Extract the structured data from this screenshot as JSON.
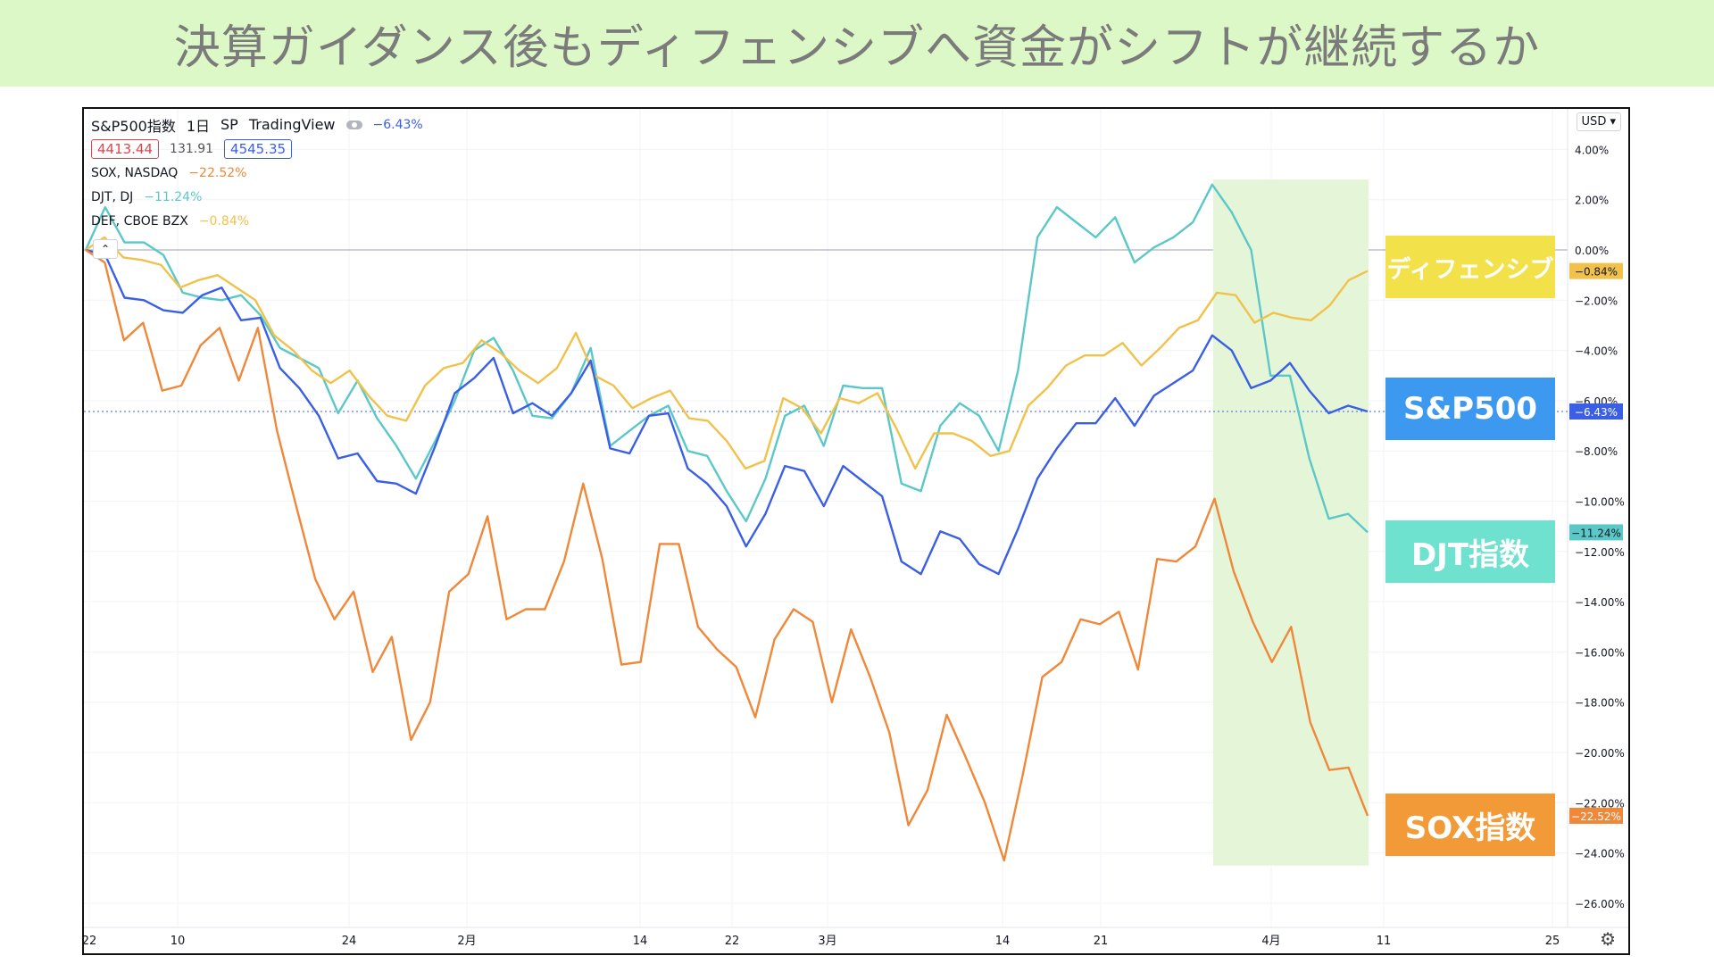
{
  "banner": {
    "title": "決算ガイダンス後もディフェンシブへ資金がシフトが継続するか"
  },
  "legend": {
    "main_title": "S&P500指数",
    "interval": "1日",
    "exchange": "SP",
    "source": "TradingView",
    "main_change": "−6.43%",
    "low_value": "4413.44",
    "mid_value": "131.91",
    "high_value": "4545.35",
    "series": [
      {
        "label": "SOX, NASDAQ",
        "change": "−22.52%",
        "color": "#f0883a"
      },
      {
        "label": "DJT, DJ",
        "change": "−11.24%",
        "color": "#5bc8c8"
      },
      {
        "label": "DEF, CBOE BZX",
        "change": "−0.84%",
        "color": "#f1c24b"
      }
    ]
  },
  "currency": "USD",
  "callouts": {
    "defensive": "ディフェンシブ",
    "sp500": "S&P500",
    "djt": "DJT指数",
    "sox": "SOX指数"
  },
  "colors": {
    "sp500": "#3a5fe5",
    "sox": "#f0883a",
    "djt": "#5bc8c8",
    "def": "#f1c24b",
    "highlight": "#e5f5d8",
    "callout_def": "#f3e14a",
    "callout_sp": "#3d98ef",
    "callout_djt": "#6ee1cf",
    "callout_sox": "#f19a37"
  },
  "chart_data": {
    "type": "line",
    "x_ticks": [
      "22",
      "10",
      "24",
      "2月",
      "14",
      "22",
      "3月",
      "14",
      "21",
      "4月",
      "11",
      "25"
    ],
    "y_ticks": [
      "4.00%",
      "2.00%",
      "0.00%",
      "−2.00%",
      "−4.00%",
      "−6.00%",
      "−8.00%",
      "−10.00%",
      "−12.00%",
      "−14.00%",
      "−16.00%",
      "−18.00%",
      "−20.00%",
      "−22.00%",
      "−24.00%",
      "−26.00%"
    ],
    "ylim": [
      -26.5,
      5
    ],
    "unit": "%",
    "highlight_range": [
      -24.5,
      2.8
    ],
    "series": [
      {
        "key": "djt",
        "last_label": "−11.24%",
        "values": [
          0,
          1.7,
          0.3,
          0.3,
          -0.2,
          -1.7,
          -1.9,
          -2,
          -1.8,
          -2.6,
          -3.9,
          -4.3,
          -4.7,
          -6.5,
          -5.2,
          -6.7,
          -7.8,
          -9.1,
          -7.6,
          -6,
          -4,
          -3.5,
          -4.8,
          -6.6,
          -6.7,
          -5.7,
          -3.9,
          -7.8,
          -7.2,
          -6.6,
          -6.2,
          -8,
          -8.2,
          -9.6,
          -10.8,
          -9.1,
          -6.6,
          -6.2,
          -7.8,
          -5.4,
          -5.5,
          -5.5,
          -9.3,
          -9.6,
          -7,
          -6.1,
          -6.6,
          -8,
          -4.8,
          0.5,
          1.7,
          1.1,
          0.5,
          1.3,
          -0.5,
          0.1,
          0.5,
          1.1,
          2.6,
          1.5,
          0,
          -5,
          -5,
          -8.3,
          -10.7,
          -10.5,
          -11.24
        ]
      },
      {
        "key": "def",
        "last_label": "−0.84%",
        "values": [
          0,
          0.5,
          -0.3,
          -0.4,
          -0.6,
          -1.5,
          -1.2,
          -1,
          -1.5,
          -2,
          -3.4,
          -4,
          -4.8,
          -5.3,
          -4.8,
          -5.8,
          -6.6,
          -6.8,
          -5.4,
          -4.7,
          -4.5,
          -3.6,
          -4.1,
          -4.8,
          -5.3,
          -4.7,
          -3.3,
          -5,
          -5.4,
          -6.3,
          -5.9,
          -5.6,
          -6.7,
          -6.8,
          -7.6,
          -8.7,
          -8.4,
          -5.9,
          -6.3,
          -7.3,
          -5.9,
          -6.1,
          -5.7,
          -7.1,
          -8.7,
          -7.3,
          -7.3,
          -7.6,
          -8.2,
          -8,
          -6.2,
          -5.5,
          -4.6,
          -4.2,
          -4.2,
          -3.7,
          -4.6,
          -3.9,
          -3.1,
          -2.8,
          -1.7,
          -1.8,
          -2.9,
          -2.5,
          -2.7,
          -2.8,
          -2.2,
          -1.2,
          -0.84
        ]
      },
      {
        "key": "sp",
        "last_label": "−6.43%",
        "values": [
          0,
          -0.2,
          -1.9,
          -2,
          -2.4,
          -2.5,
          -1.8,
          -1.5,
          -2.8,
          -2.7,
          -4.7,
          -5.5,
          -6.6,
          -8.3,
          -8.1,
          -9.2,
          -9.3,
          -9.7,
          -7.8,
          -5.7,
          -5.1,
          -4.3,
          -6.5,
          -6.1,
          -6.6,
          -5.7,
          -4.4,
          -7.9,
          -8.1,
          -6.6,
          -6.5,
          -8.7,
          -9.3,
          -10.2,
          -11.8,
          -10.5,
          -8.6,
          -8.8,
          -10.2,
          -8.6,
          -9.2,
          -9.8,
          -12.4,
          -12.9,
          -11.2,
          -11.5,
          -12.5,
          -12.9,
          -11.1,
          -9.1,
          -7.9,
          -6.9,
          -6.9,
          -5.9,
          -7,
          -5.8,
          -5.3,
          -4.8,
          -3.4,
          -4,
          -5.5,
          -5.2,
          -4.5,
          -5.6,
          -6.5,
          -6.2,
          -6.43
        ]
      },
      {
        "key": "sox",
        "last_label": "−22.52%",
        "values": [
          0,
          -0.5,
          -3.6,
          -2.9,
          -5.6,
          -5.4,
          -3.8,
          -3.1,
          -5.2,
          -3.1,
          -7.2,
          -10.2,
          -13.1,
          -14.7,
          -13.6,
          -16.8,
          -15.4,
          -19.5,
          -18,
          -13.6,
          -12.9,
          -10.6,
          -14.7,
          -14.3,
          -14.3,
          -12.4,
          -9.3,
          -12.3,
          -16.5,
          -16.4,
          -11.7,
          -11.7,
          -15,
          -15.9,
          -16.6,
          -18.6,
          -15.5,
          -14.3,
          -14.8,
          -18,
          -15.1,
          -17,
          -19.2,
          -22.9,
          -21.5,
          -18.5,
          -20.2,
          -22,
          -24.3,
          -20.8,
          -17,
          -16.4,
          -14.7,
          -14.9,
          -14.4,
          -16.7,
          -12.3,
          -12.4,
          -11.8,
          -9.9,
          -12.8,
          -14.8,
          -16.4,
          -15,
          -18.8,
          -20.7,
          -20.6,
          -22.52
        ]
      }
    ]
  }
}
